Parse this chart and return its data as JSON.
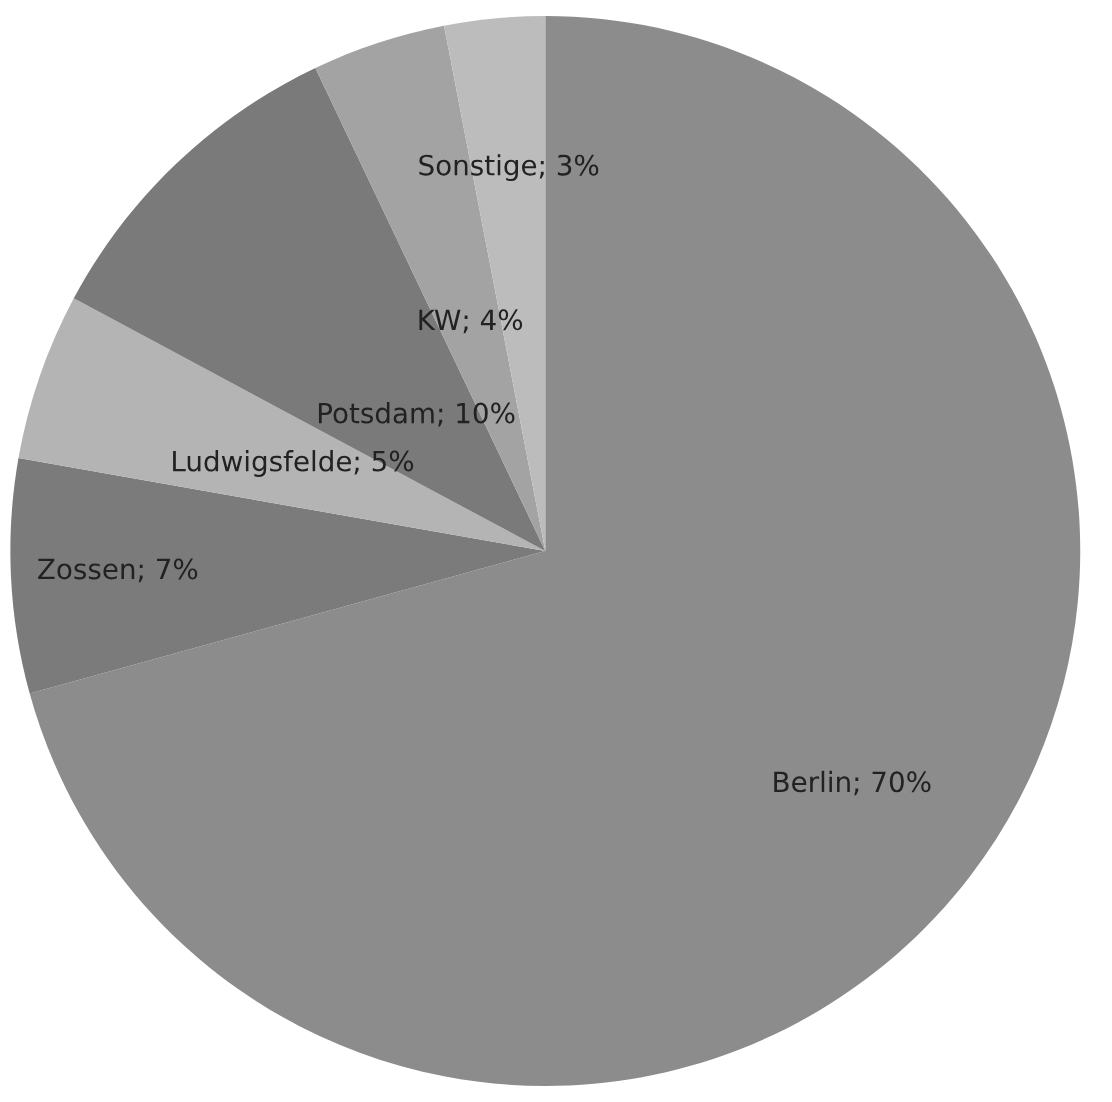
{
  "chart_data": {
    "type": "pie",
    "categories": [
      "Berlin",
      "Zossen",
      "Ludwigsfelde",
      "Potsdam",
      "KW",
      "Sonstige"
    ],
    "values": [
      70,
      7,
      5,
      10,
      4,
      3
    ],
    "value_labels": [
      "70%",
      "7%",
      "5%",
      "10%",
      "4%",
      "3%"
    ],
    "colors": [
      "#8c8c8c",
      "#7b7b7b",
      "#b4b4b4",
      "#7a7a7a",
      "#a3a3a3",
      "#bcbcbc"
    ]
  }
}
